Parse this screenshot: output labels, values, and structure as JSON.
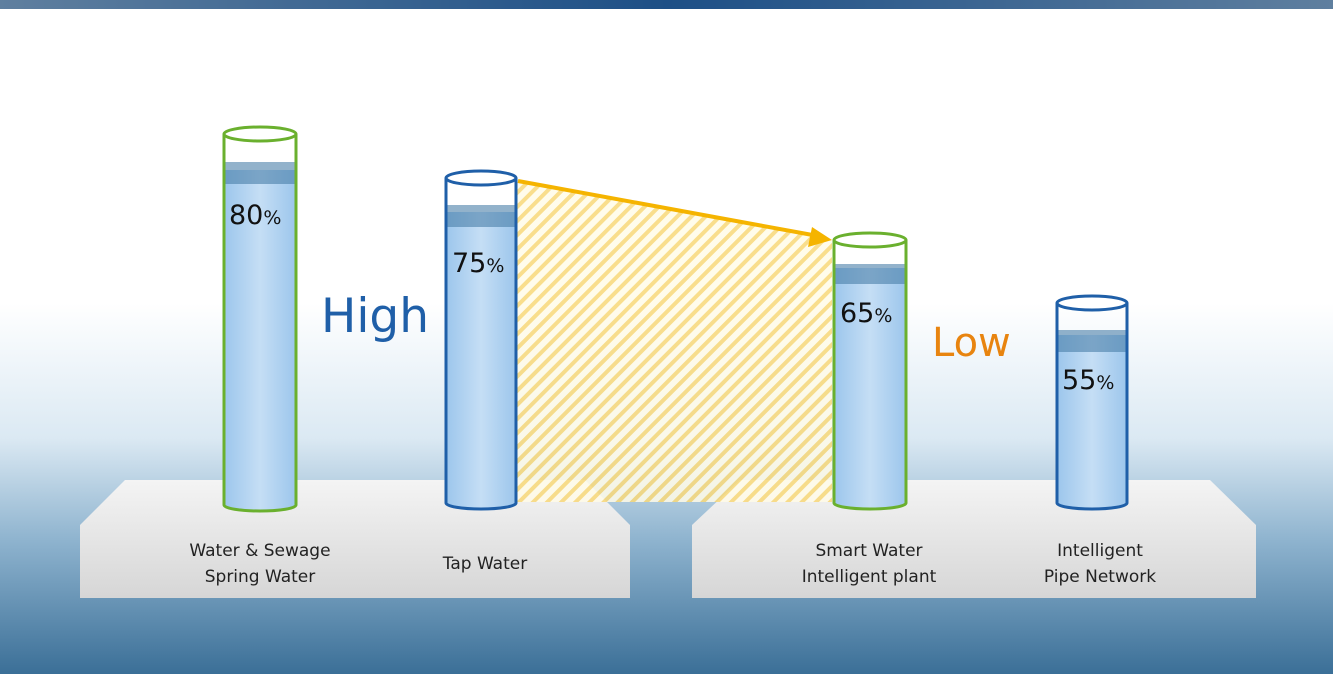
{
  "items": [
    {
      "label_lines": [
        "Water & Sewage",
        "Spring  Water"
      ],
      "value": "80",
      "unit": "%"
    },
    {
      "label_lines": [
        "Tap Water"
      ],
      "value": "75",
      "unit": "%"
    },
    {
      "label_lines": [
        "Smart  Water",
        "Intelligent plant"
      ],
      "value": "65",
      "unit": "%"
    },
    {
      "label_lines": [
        "Intelligent",
        "Pipe  Network"
      ],
      "value": "55",
      "unit": "%"
    }
  ],
  "high_label": "High",
  "low_label": "Low"
}
